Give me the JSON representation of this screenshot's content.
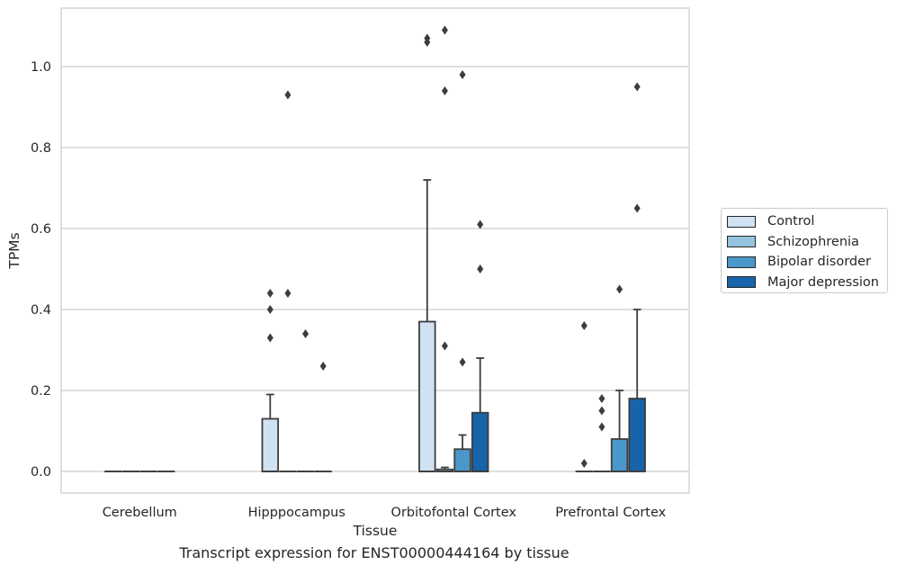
{
  "chart_data": {
    "type": "box",
    "title": "",
    "caption": "Transcript expression for ENST00000444164 by tissue",
    "xlabel": "Tissue",
    "ylabel": "TPMs",
    "ylim": [
      -0.05,
      1.145
    ],
    "yticks": [
      "0.0",
      "0.2",
      "0.4",
      "0.6",
      "0.8",
      "1.0"
    ],
    "grid": "horizontal",
    "legend_position": "center-right, outside plot",
    "categories": [
      "Cerebellum",
      "Hipppocampus",
      "Orbitofontal Cortex",
      "Prefrontal Cortex"
    ],
    "series": [
      {
        "name": "Control",
        "color": "#d0e1f2",
        "boxes": [
          {
            "q1": 0,
            "median": 0,
            "q3": 0,
            "whisker_low": 0,
            "whisker_high": 0,
            "outliers": []
          },
          {
            "q1": 0,
            "median": 0,
            "q3": 0.13,
            "whisker_low": 0,
            "whisker_high": 0.19,
            "outliers": [
              0.33,
              0.4,
              0.44
            ]
          },
          {
            "q1": 0,
            "median": 0,
            "q3": 0.37,
            "whisker_low": 0,
            "whisker_high": 0.72,
            "outliers": [
              1.06,
              1.07
            ]
          },
          {
            "q1": 0,
            "median": 0,
            "q3": 0,
            "whisker_low": 0,
            "whisker_high": 0,
            "outliers": [
              0.02,
              0.36
            ]
          }
        ]
      },
      {
        "name": "Schizophrenia",
        "color": "#94c4df",
        "boxes": [
          {
            "q1": 0,
            "median": 0,
            "q3": 0,
            "whisker_low": 0,
            "whisker_high": 0,
            "outliers": []
          },
          {
            "q1": 0,
            "median": 0,
            "q3": 0,
            "whisker_low": 0,
            "whisker_high": 0,
            "outliers": [
              0.44,
              0.93
            ]
          },
          {
            "q1": 0,
            "median": 0,
            "q3": 0.005,
            "whisker_low": 0,
            "whisker_high": 0.01,
            "outliers": [
              0.31,
              0.94,
              1.09
            ]
          },
          {
            "q1": 0,
            "median": 0,
            "q3": 0,
            "whisker_low": 0,
            "whisker_high": 0,
            "outliers": [
              0.11,
              0.15,
              0.18
            ]
          }
        ]
      },
      {
        "name": "Bipolar disorder",
        "color": "#4a98c9",
        "boxes": [
          {
            "q1": 0,
            "median": 0,
            "q3": 0,
            "whisker_low": 0,
            "whisker_high": 0,
            "outliers": []
          },
          {
            "q1": 0,
            "median": 0,
            "q3": 0,
            "whisker_low": 0,
            "whisker_high": 0,
            "outliers": [
              0.34
            ]
          },
          {
            "q1": 0,
            "median": 0,
            "q3": 0.055,
            "whisker_low": 0,
            "whisker_high": 0.09,
            "outliers": [
              0.27,
              0.98
            ]
          },
          {
            "q1": 0,
            "median": 0,
            "q3": 0.08,
            "whisker_low": 0,
            "whisker_high": 0.2,
            "outliers": [
              0.45
            ]
          }
        ]
      },
      {
        "name": "Major depression",
        "color": "#1764ab",
        "boxes": [
          {
            "q1": 0,
            "median": 0,
            "q3": 0,
            "whisker_low": 0,
            "whisker_high": 0,
            "outliers": []
          },
          {
            "q1": 0,
            "median": 0,
            "q3": 0,
            "whisker_low": 0,
            "whisker_high": 0,
            "outliers": [
              0.26
            ]
          },
          {
            "q1": 0,
            "median": 0,
            "q3": 0.145,
            "whisker_low": 0,
            "whisker_high": 0.28,
            "outliers": [
              0.5,
              0.61
            ]
          },
          {
            "q1": 0,
            "median": 0,
            "q3": 0.18,
            "whisker_low": 0,
            "whisker_high": 0.4,
            "outliers": [
              0.65,
              0.95
            ]
          }
        ]
      }
    ]
  }
}
